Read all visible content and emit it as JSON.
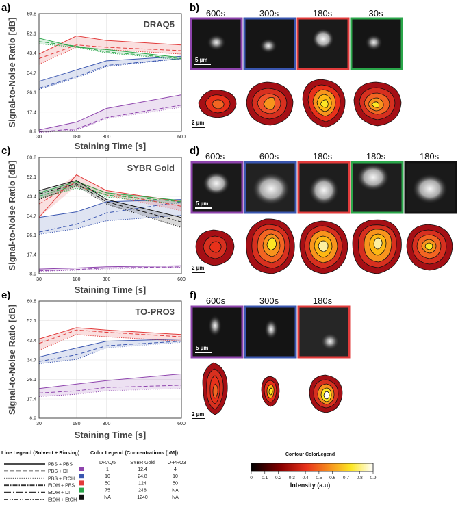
{
  "chart_data": [
    {
      "panel": "a)",
      "type": "line",
      "title": "DRAQ5",
      "xlabel": "Staining Time [s]",
      "ylabel": "Signal-to-Noise Ratio [dB]",
      "x": [
        30,
        180,
        300,
        600
      ],
      "x_ticks": [
        "30",
        "180",
        "300",
        "600"
      ],
      "y_ticks": [
        "8.9",
        "17.4",
        "26.1",
        "34.7",
        "43.4",
        "52.1",
        "60.8"
      ],
      "ylim": [
        8.9,
        60.8
      ],
      "series": [
        {
          "name": "PBS + PBS",
          "color": "purple",
          "style": "solid",
          "values": [
            9.5,
            13.0,
            19.0,
            25.0
          ]
        },
        {
          "name": "PBS + DI",
          "color": "purple",
          "style": "dash",
          "values": [
            8.7,
            10.0,
            15.0,
            20.5
          ]
        },
        {
          "name": "PBS + EtOH",
          "color": "purple",
          "style": "dot",
          "values": [
            8.4,
            9.5,
            14.5,
            19.5
          ]
        },
        {
          "name": "PBS + PBS",
          "color": "blue",
          "style": "solid",
          "values": [
            31.0,
            36.0,
            40.0,
            42.0
          ]
        },
        {
          "name": "PBS + DI",
          "color": "blue",
          "style": "dash",
          "values": [
            28.0,
            33.0,
            38.0,
            41.0
          ]
        },
        {
          "name": "PBS + EtOH",
          "color": "blue",
          "style": "dot",
          "values": [
            27.5,
            32.5,
            37.5,
            41.0
          ]
        },
        {
          "name": "PBS + PBS",
          "color": "red",
          "style": "solid",
          "values": [
            43.0,
            51.0,
            49.0,
            47.0
          ]
        },
        {
          "name": "PBS + DI",
          "color": "red",
          "style": "dash",
          "values": [
            41.0,
            47.0,
            46.0,
            44.5
          ]
        },
        {
          "name": "PBS + EtOH",
          "color": "red",
          "style": "dot",
          "values": [
            38.5,
            46.0,
            45.0,
            43.0
          ]
        },
        {
          "name": "PBS + PBS",
          "color": "green",
          "style": "solid",
          "values": [
            50.0,
            46.0,
            45.0,
            41.5
          ]
        },
        {
          "name": "PBS + DI",
          "color": "green",
          "style": "dash",
          "values": [
            48.5,
            46.5,
            44.0,
            41.0
          ]
        },
        {
          "name": "PBS + EtOH",
          "color": "green",
          "style": "dot",
          "values": [
            47.5,
            46.0,
            43.5,
            40.5
          ]
        }
      ]
    },
    {
      "panel": "c)",
      "type": "line",
      "title": "SYBR Gold",
      "xlabel": "Staining Time [s]",
      "ylabel": "Signal-to-Noise Ratio [dB]",
      "x": [
        30,
        180,
        300,
        600
      ],
      "x_ticks": [
        "30",
        "180",
        "300",
        "600"
      ],
      "y_ticks": [
        "8.9",
        "17.4",
        "26.1",
        "34.7",
        "43.4",
        "52.1",
        "60.8"
      ],
      "ylim": [
        8.9,
        60.8
      ],
      "series": [
        {
          "name": "PBS + PBS",
          "color": "purple",
          "style": "solid",
          "values": [
            11.0,
            11.5,
            12.0,
            12.5
          ]
        },
        {
          "name": "PBS + DI",
          "color": "purple",
          "style": "dash",
          "values": [
            10.2,
            10.8,
            11.5,
            12.0
          ]
        },
        {
          "name": "PBS + EtOH",
          "color": "purple",
          "style": "dot",
          "values": [
            10.0,
            10.5,
            11.0,
            11.8
          ]
        },
        {
          "name": "PBS + PBS",
          "color": "blue",
          "style": "solid",
          "values": [
            34.0,
            36.5,
            41.0,
            42.0
          ]
        },
        {
          "name": "PBS + DI",
          "color": "blue",
          "style": "dash",
          "values": [
            27.5,
            31.0,
            36.0,
            41.0
          ]
        },
        {
          "name": "PBS + EtOH",
          "color": "blue",
          "style": "dot",
          "values": [
            26.5,
            29.0,
            32.5,
            35.0
          ]
        },
        {
          "name": "PBS + PBS",
          "color": "red",
          "style": "solid",
          "values": [
            34.0,
            53.0,
            46.0,
            41.0
          ]
        },
        {
          "name": "PBS + DI",
          "color": "red",
          "style": "dash",
          "values": [
            40.0,
            50.0,
            45.0,
            39.0
          ]
        },
        {
          "name": "PBS + EtOH",
          "color": "red",
          "style": "dot",
          "values": [
            42.0,
            48.0,
            44.0,
            37.0
          ]
        },
        {
          "name": "PBS + PBS",
          "color": "green",
          "style": "solid",
          "values": [
            45.0,
            50.0,
            45.0,
            41.5
          ]
        },
        {
          "name": "PBS + DI",
          "color": "green",
          "style": "dash",
          "values": [
            43.5,
            48.5,
            44.0,
            41.0
          ]
        },
        {
          "name": "PBS + EtOH",
          "color": "green",
          "style": "dot",
          "values": [
            42.5,
            47.0,
            43.0,
            40.0
          ]
        },
        {
          "name": "PBS + PBS",
          "color": "black",
          "style": "solid",
          "values": [
            46.0,
            50.5,
            42.0,
            34.0
          ]
        },
        {
          "name": "PBS + DI",
          "color": "black",
          "style": "dash",
          "values": [
            44.5,
            49.0,
            41.0,
            32.0
          ]
        },
        {
          "name": "PBS + EtOH",
          "color": "black",
          "style": "dot",
          "values": [
            42.0,
            48.0,
            40.0,
            29.5
          ]
        }
      ]
    },
    {
      "panel": "e)",
      "type": "line",
      "title": "TO-PRO3",
      "xlabel": "Staining Time [s]",
      "ylabel": "Signal-to-Noise Ratio [dB]",
      "x": [
        30,
        180,
        300,
        600
      ],
      "x_ticks": [
        "30",
        "180",
        "300",
        "600"
      ],
      "y_ticks": [
        "8.9",
        "17.4",
        "26.1",
        "34.7",
        "43.4",
        "52.1",
        "60.8"
      ],
      "ylim": [
        8.9,
        60.8
      ],
      "series": [
        {
          "name": "PBS + PBS",
          "color": "purple",
          "style": "solid",
          "values": [
            22.0,
            24.0,
            25.5,
            28.5
          ]
        },
        {
          "name": "PBS + DI",
          "color": "purple",
          "style": "dash",
          "values": [
            20.0,
            21.0,
            22.5,
            23.5
          ]
        },
        {
          "name": "PBS + EtOH",
          "color": "purple",
          "style": "dot",
          "values": [
            18.5,
            19.5,
            21.0,
            22.0
          ]
        },
        {
          "name": "PBS + PBS",
          "color": "blue",
          "style": "solid",
          "values": [
            36.0,
            40.0,
            43.0,
            44.0
          ]
        },
        {
          "name": "PBS + DI",
          "color": "blue",
          "style": "dash",
          "values": [
            34.0,
            37.0,
            41.0,
            43.0
          ]
        },
        {
          "name": "PBS + EtOH",
          "color": "blue",
          "style": "dot",
          "values": [
            33.0,
            35.0,
            40.0,
            42.5
          ]
        },
        {
          "name": "PBS + PBS",
          "color": "red",
          "style": "solid",
          "values": [
            44.0,
            49.0,
            48.0,
            46.0
          ]
        },
        {
          "name": "PBS + DI",
          "color": "red",
          "style": "dash",
          "values": [
            42.0,
            48.0,
            47.0,
            45.0
          ]
        },
        {
          "name": "PBS + EtOH",
          "color": "red",
          "style": "dot",
          "values": [
            39.0,
            46.0,
            45.0,
            43.0
          ]
        }
      ]
    }
  ],
  "micrographs": {
    "b": {
      "panel": "b)",
      "times": [
        "600s",
        "300s",
        "180s",
        "30s"
      ],
      "borders": [
        "#8e44ad",
        "#3a56b0",
        "#e23b3b",
        "#2aa64a"
      ],
      "scale_img": "5 µm",
      "scale_contour": "2 µm"
    },
    "d": {
      "panel": "d)",
      "times": [
        "600s",
        "600s",
        "180s",
        "180s",
        "180s"
      ],
      "borders": [
        "#8e44ad",
        "#3a56b0",
        "#e23b3b",
        "#2aa64a",
        "#111111"
      ],
      "scale_img": "5 µm",
      "scale_contour": "2 µm"
    },
    "f": {
      "panel": "f)",
      "times": [
        "600s",
        "300s",
        "180s"
      ],
      "borders": [
        "#8e44ad",
        "#3a56b0",
        "#e23b3b"
      ],
      "scale_img": "5 µm",
      "scale_contour": "2 µm"
    }
  },
  "legend": {
    "line_title": "Line Legend (Solvent + Rinsing)",
    "color_title": "Color Legend (Concentrations [µM])",
    "lines": [
      {
        "label": "PBS + PBS",
        "style": "solid"
      },
      {
        "label": "PBS + DI",
        "style": "dash"
      },
      {
        "label": "PBS + EtOH",
        "style": "dot"
      },
      {
        "label": "EtOH + PBS",
        "style": "dashdot"
      },
      {
        "label": "EtOH + DI",
        "style": "dashdot2"
      },
      {
        "label": "EtOH + EtOH",
        "style": "dashdotdot"
      }
    ],
    "columns": [
      "DRAQ5",
      "SYBR Gold",
      "TO-PRO3"
    ],
    "rows": [
      {
        "color": "#8e44ad",
        "values": [
          "1",
          "12.4",
          "4"
        ]
      },
      {
        "color": "#3a56b0",
        "values": [
          "10",
          "24.8",
          "10"
        ]
      },
      {
        "color": "#e23b3b",
        "values": [
          "50",
          "124",
          "50"
        ]
      },
      {
        "color": "#2aa64a",
        "values": [
          "75",
          "248",
          "NA"
        ]
      },
      {
        "color": "#111111",
        "values": [
          "NA",
          "1240",
          "NA"
        ]
      }
    ]
  },
  "colorbar": {
    "title": "Contour ColorLegend",
    "label": "Intensity (a.u)",
    "ticks": [
      "0",
      "0.1",
      "0.2",
      "0.3",
      "0.4",
      "0.5",
      "0.6",
      "0.7",
      "0.8",
      "0.9"
    ]
  },
  "colors": {
    "purple": "#8e44ad",
    "blue": "#3a56b0",
    "red": "#e23b3b",
    "green": "#2aa64a",
    "black": "#111111"
  }
}
